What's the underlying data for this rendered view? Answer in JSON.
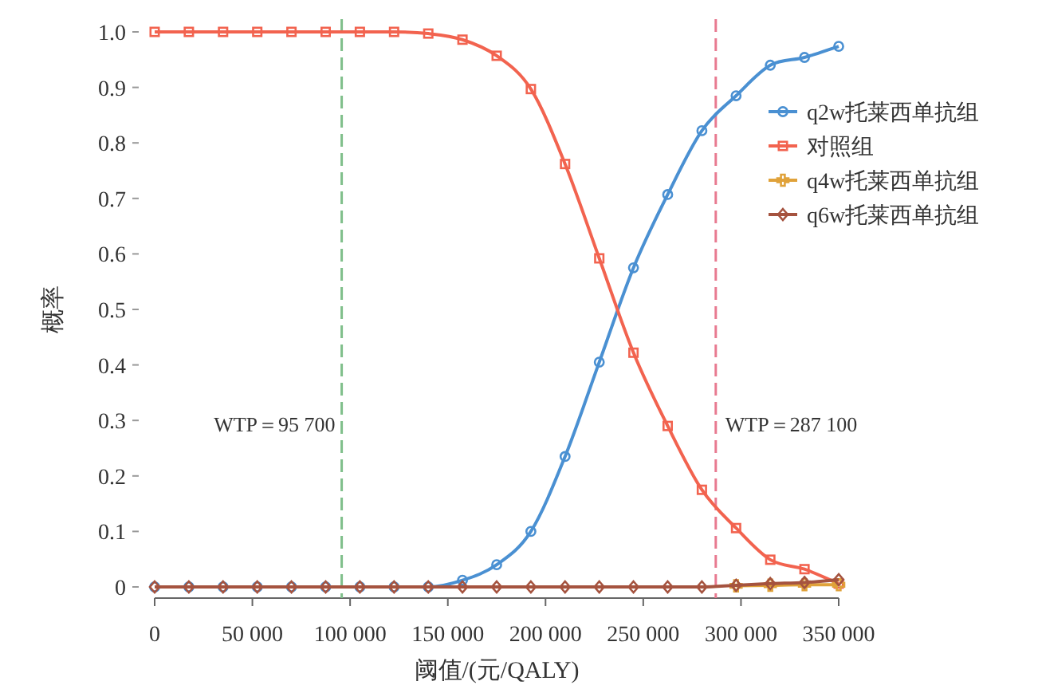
{
  "chart_data": {
    "type": "line",
    "xlabel": "阈值/(元/QALY)",
    "ylabel": "概率",
    "x": [
      0,
      17500,
      35000,
      52500,
      70000,
      87500,
      105000,
      122500,
      140000,
      157500,
      175000,
      192500,
      210000,
      227500,
      245000,
      262500,
      280000,
      297500,
      315000,
      332500,
      350000
    ],
    "series": [
      {
        "name": "q2w托莱西单抗组",
        "color": "#4a90d2",
        "marker": "circle",
        "values": [
          0,
          0,
          0,
          0,
          0,
          0,
          0,
          0,
          0,
          0.012,
          0.04,
          0.1,
          0.235,
          0.405,
          0.575,
          0.707,
          0.822,
          0.885,
          0.94,
          0.954,
          0.974
        ]
      },
      {
        "name": "对照组",
        "color": "#f2634f",
        "marker": "square",
        "values": [
          1,
          1,
          1,
          1,
          1,
          1,
          1,
          1,
          0.997,
          0.986,
          0.957,
          0.897,
          0.762,
          0.592,
          0.422,
          0.29,
          0.175,
          0.106,
          0.049,
          0.032,
          0.006
        ]
      },
      {
        "name": "q4w托莱西单抗组",
        "color": "#e0a23a",
        "marker": "cross",
        "values": [
          null,
          null,
          null,
          null,
          null,
          null,
          null,
          null,
          null,
          null,
          null,
          null,
          null,
          null,
          null,
          null,
          null,
          0.002,
          0.003,
          0.004,
          0.004
        ]
      },
      {
        "name": "q6w托莱西单抗组",
        "color": "#a5533f",
        "marker": "diamond",
        "values": [
          0,
          0,
          0,
          0,
          0,
          0,
          0,
          0,
          0,
          0,
          0,
          0,
          0,
          0,
          0,
          0,
          0,
          0.003,
          0.006,
          0.008,
          0.013
        ]
      }
    ],
    "xlim": [
      0,
      350000
    ],
    "xticks": [
      0,
      {
        "value": 50000,
        "label": "50 000"
      },
      {
        "value": 100000,
        "label": "100 000"
      },
      {
        "value": 150000,
        "label": "150 000"
      },
      {
        "value": 200000,
        "label": "200 000"
      },
      {
        "value": 250000,
        "label": "250 000"
      },
      {
        "value": 300000,
        "label": "300 000"
      },
      {
        "value": 350000,
        "label": "350 000"
      }
    ],
    "ylim": [
      0,
      1
    ],
    "yticks": [
      0,
      0.1,
      0.2,
      0.3,
      0.4,
      0.5,
      0.6,
      0.7,
      0.8,
      0.9,
      {
        "value": 1,
        "label": "1.0"
      }
    ],
    "ref_lines": [
      {
        "axis": "x",
        "value": 95700,
        "label": "WTP＝95 700",
        "color": "#7fbf8a",
        "line_style": "dashed"
      },
      {
        "axis": "x",
        "value": 287100,
        "label": "WTP＝287 100",
        "color": "#e87a90",
        "line_style": "dashed"
      }
    ],
    "grid": false,
    "legend": "top right",
    "line_style": "solid"
  }
}
